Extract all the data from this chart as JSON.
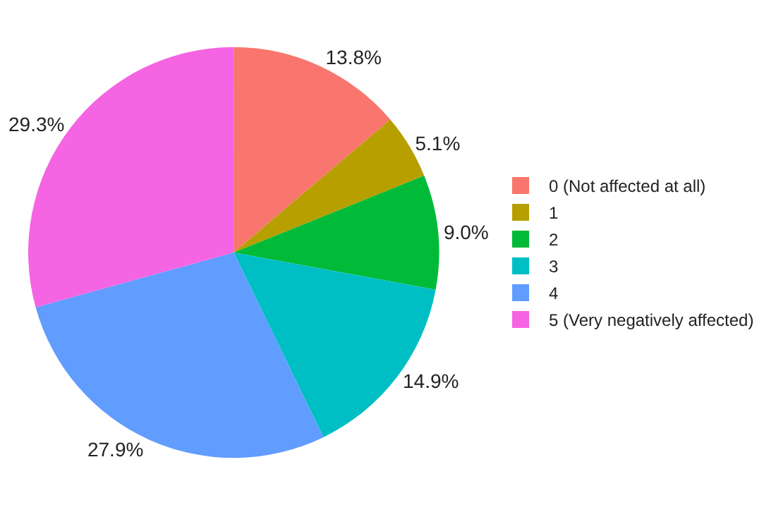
{
  "chart_data": {
    "type": "pie",
    "categories": [
      "0 (Not affected at all)",
      "1",
      "2",
      "3",
      "4",
      "5 (Very negatively affected)"
    ],
    "values": [
      13.8,
      5.1,
      9.0,
      14.9,
      27.9,
      29.3
    ],
    "value_labels": [
      "13.8%",
      "5.1%",
      "9.0%",
      "14.9%",
      "27.9%",
      "29.3%"
    ],
    "colors": [
      "#f8766d",
      "#b79f00",
      "#00ba38",
      "#00bfc4",
      "#619cff",
      "#f564e3"
    ],
    "legend": "right"
  }
}
